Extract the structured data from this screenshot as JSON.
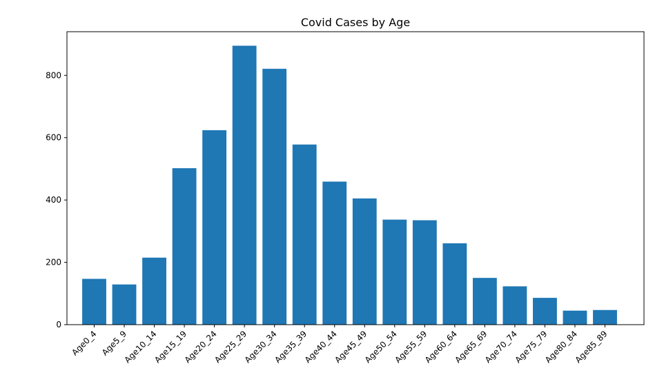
{
  "chart_data": {
    "type": "bar",
    "title": "Covid Cases by Age",
    "xlabel": "",
    "ylabel": "",
    "categories": [
      "Age0_4",
      "Age5_9",
      "Age10_14",
      "Age15_19",
      "Age20_24",
      "Age25_29",
      "Age30_34",
      "Age35_39",
      "Age40_44",
      "Age45_49",
      "Age50_54",
      "Age55_59",
      "Age60_64",
      "Age65_69",
      "Age70_74",
      "Age75_79",
      "Age80_84",
      "Age85_89"
    ],
    "values": [
      147,
      129,
      215,
      502,
      624,
      895,
      821,
      578,
      459,
      405,
      337,
      335,
      261,
      150,
      123,
      86,
      45,
      47
    ],
    "ylim": [
      0,
      940
    ],
    "yticks": [
      0,
      200,
      400,
      600,
      800
    ],
    "grid": false,
    "bar_color": "#1f77b4"
  }
}
